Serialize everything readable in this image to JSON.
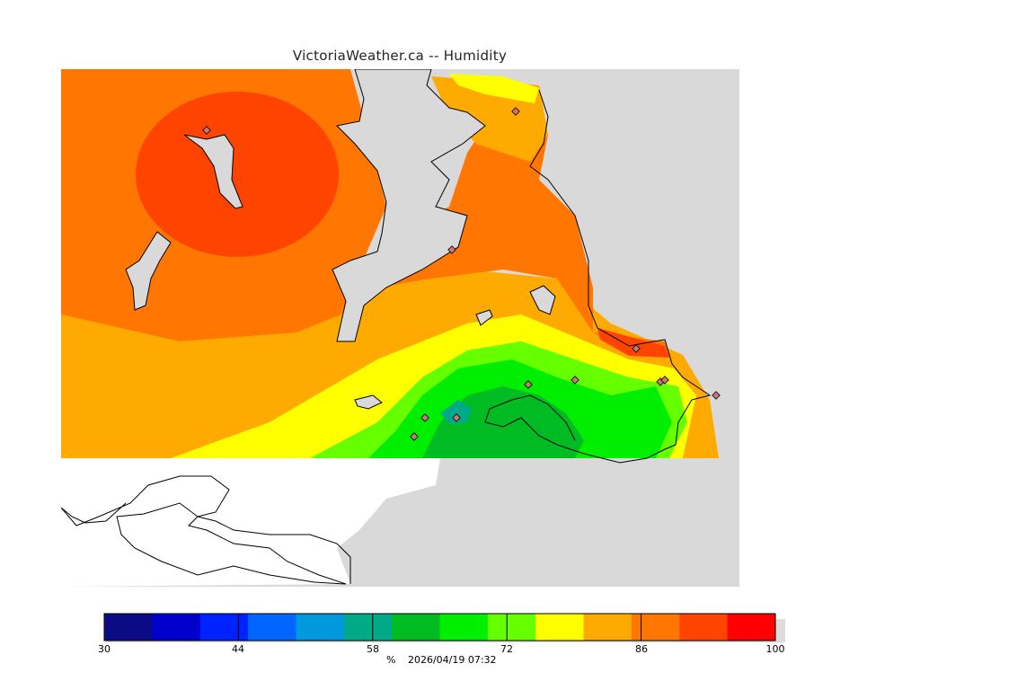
{
  "title": "VictoriaWeather.ca -- Humidity",
  "colorbar": {
    "unit": "%",
    "range": [
      30,
      100
    ],
    "ticks": [
      "30",
      "44",
      "58",
      "72",
      "86",
      "100"
    ],
    "colors": [
      "#0b0b86",
      "#0000cd",
      "#0022ff",
      "#0066ff",
      "#0099dd",
      "#00aa88",
      "#00bb22",
      "#00ee00",
      "#66ff00",
      "#ffff00",
      "#ffaa00",
      "#ff7700",
      "#ff4400",
      "#ff0000"
    ]
  },
  "timestamp": "2026/04/19 07:32",
  "colors": {
    "land_background": "#d9d9d9",
    "no_data": "#ffffff",
    "station_marker": "#c87878"
  }
}
